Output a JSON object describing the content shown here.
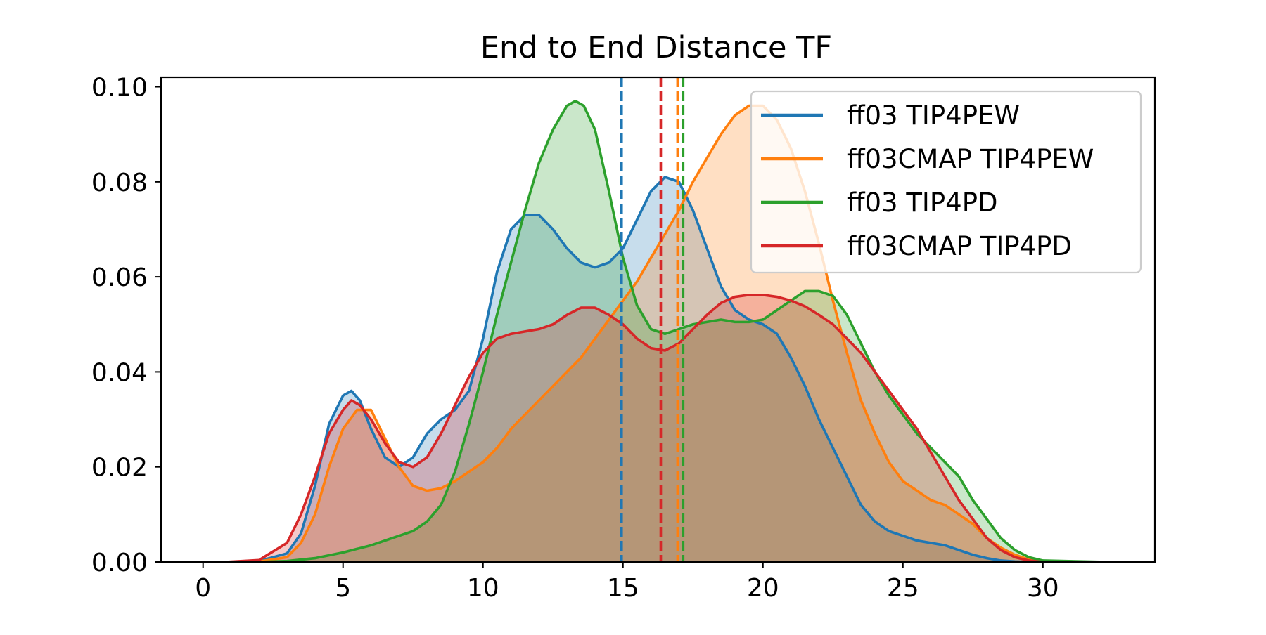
{
  "chart_data": {
    "type": "area",
    "title": "End to End Distance TF",
    "xlabel": "",
    "ylabel": "",
    "xlim": [
      -1.5,
      34
    ],
    "ylim": [
      0,
      0.102
    ],
    "xticks": [
      0,
      5,
      10,
      15,
      20,
      25,
      30
    ],
    "yticks": [
      0.0,
      0.02,
      0.04,
      0.06,
      0.08,
      0.1
    ],
    "xtick_labels": [
      "0",
      "5",
      "10",
      "15",
      "20",
      "25",
      "30"
    ],
    "ytick_labels": [
      "0.00",
      "0.02",
      "0.04",
      "0.06",
      "0.08",
      "0.10"
    ],
    "grid": false,
    "legend_position": "top-right",
    "series": [
      {
        "name": "ff03 TIP4PEW",
        "color": "#1f77b4",
        "mean": 14.95,
        "x": [
          0.8,
          2,
          3,
          3.5,
          4,
          4.5,
          5,
          5.3,
          5.6,
          6,
          6.5,
          7,
          7.5,
          8,
          8.5,
          9,
          9.5,
          10,
          10.5,
          11,
          11.5,
          12,
          12.5,
          13,
          13.5,
          14,
          14.5,
          15,
          15.5,
          16,
          16.5,
          17,
          17.5,
          18,
          18.5,
          19,
          19.5,
          20,
          20.5,
          21,
          21.5,
          22,
          22.5,
          23,
          23.5,
          24,
          24.5,
          25,
          25.5,
          26,
          26.5,
          27,
          27.5,
          28,
          28.5,
          29,
          29.5,
          30,
          32.3
        ],
        "values": [
          0,
          0.0002,
          0.0018,
          0.006,
          0.016,
          0.029,
          0.035,
          0.036,
          0.034,
          0.028,
          0.022,
          0.02,
          0.022,
          0.027,
          0.03,
          0.032,
          0.036,
          0.047,
          0.061,
          0.07,
          0.073,
          0.073,
          0.07,
          0.066,
          0.063,
          0.062,
          0.063,
          0.066,
          0.072,
          0.078,
          0.081,
          0.08,
          0.074,
          0.066,
          0.058,
          0.053,
          0.051,
          0.05,
          0.048,
          0.043,
          0.037,
          0.03,
          0.024,
          0.018,
          0.012,
          0.0085,
          0.0065,
          0.0055,
          0.0045,
          0.004,
          0.0035,
          0.0025,
          0.0015,
          0.0008,
          0.0003,
          0.0001,
          0,
          0,
          0
        ]
      },
      {
        "name": "ff03CMAP TIP4PEW",
        "color": "#ff7f0e",
        "mean": 16.95,
        "x": [
          0.8,
          2,
          3,
          3.5,
          4,
          4.5,
          5,
          5.5,
          6,
          6.5,
          7,
          7.5,
          8,
          8.5,
          9,
          9.5,
          10,
          10.5,
          11,
          11.5,
          12,
          12.5,
          13,
          13.5,
          14,
          14.5,
          15,
          15.5,
          16,
          16.5,
          17,
          17.5,
          18,
          18.5,
          19,
          19.5,
          20,
          20.5,
          21,
          21.5,
          22,
          22.5,
          23,
          23.5,
          24,
          24.5,
          25,
          25.5,
          26,
          26.5,
          27,
          27.5,
          28,
          28.5,
          29,
          29.5,
          30,
          32.3
        ],
        "values": [
          0,
          0.0001,
          0.001,
          0.004,
          0.01,
          0.02,
          0.028,
          0.032,
          0.032,
          0.026,
          0.02,
          0.016,
          0.015,
          0.0155,
          0.017,
          0.019,
          0.021,
          0.024,
          0.028,
          0.031,
          0.034,
          0.037,
          0.04,
          0.043,
          0.047,
          0.051,
          0.055,
          0.059,
          0.064,
          0.069,
          0.074,
          0.08,
          0.085,
          0.09,
          0.094,
          0.096,
          0.096,
          0.093,
          0.087,
          0.078,
          0.067,
          0.055,
          0.044,
          0.034,
          0.027,
          0.021,
          0.017,
          0.015,
          0.013,
          0.012,
          0.01,
          0.008,
          0.005,
          0.003,
          0.0015,
          0.0005,
          0,
          0
        ]
      },
      {
        "name": "ff03 TIP4PD",
        "color": "#2ca02c",
        "mean": 17.15,
        "x": [
          0.8,
          2,
          3,
          4,
          5,
          6,
          7,
          7.5,
          8,
          8.5,
          9,
          9.5,
          10,
          10.5,
          11,
          11.5,
          12,
          12.5,
          13,
          13.3,
          13.6,
          14,
          14.5,
          15,
          15.5,
          16,
          16.5,
          17,
          17.5,
          18,
          18.5,
          19,
          19.5,
          20,
          20.5,
          21,
          21.5,
          22,
          22.5,
          23,
          23.5,
          24,
          24.5,
          25,
          25.5,
          26,
          26.5,
          27,
          27.5,
          28,
          28.5,
          29,
          29.5,
          30,
          32.3
        ],
        "values": [
          0,
          0,
          0.0002,
          0.0008,
          0.002,
          0.0035,
          0.0055,
          0.0065,
          0.0085,
          0.012,
          0.019,
          0.029,
          0.04,
          0.052,
          0.063,
          0.074,
          0.084,
          0.091,
          0.096,
          0.097,
          0.096,
          0.091,
          0.078,
          0.064,
          0.054,
          0.049,
          0.048,
          0.049,
          0.05,
          0.0505,
          0.051,
          0.0505,
          0.0505,
          0.051,
          0.053,
          0.055,
          0.057,
          0.057,
          0.056,
          0.052,
          0.046,
          0.04,
          0.035,
          0.031,
          0.027,
          0.024,
          0.021,
          0.018,
          0.013,
          0.009,
          0.005,
          0.0025,
          0.001,
          0.0003,
          0
        ]
      },
      {
        "name": "ff03CMAP TIP4PD",
        "color": "#d62728",
        "mean": 16.35,
        "x": [
          0.8,
          2,
          3,
          3.5,
          4,
          4.5,
          5,
          5.3,
          5.6,
          6,
          6.5,
          7,
          7.5,
          8,
          8.5,
          9,
          9.5,
          10,
          10.5,
          11,
          11.5,
          12,
          12.5,
          13,
          13.5,
          14,
          14.5,
          15,
          15.5,
          16,
          16.5,
          17,
          17.5,
          18,
          18.5,
          19,
          19.5,
          20,
          20.5,
          21,
          21.5,
          22,
          22.5,
          23,
          23.5,
          24,
          24.5,
          25,
          25.5,
          26,
          26.5,
          27,
          27.5,
          28,
          28.5,
          29,
          29.5,
          30,
          32.3
        ],
        "values": [
          0,
          0.0004,
          0.004,
          0.01,
          0.018,
          0.027,
          0.032,
          0.034,
          0.033,
          0.03,
          0.025,
          0.021,
          0.02,
          0.022,
          0.027,
          0.033,
          0.039,
          0.044,
          0.047,
          0.048,
          0.0485,
          0.049,
          0.05,
          0.052,
          0.0535,
          0.0535,
          0.052,
          0.05,
          0.047,
          0.045,
          0.0445,
          0.046,
          0.049,
          0.052,
          0.0545,
          0.0558,
          0.0562,
          0.0562,
          0.0558,
          0.055,
          0.0538,
          0.052,
          0.05,
          0.047,
          0.044,
          0.04,
          0.036,
          0.032,
          0.028,
          0.023,
          0.018,
          0.013,
          0.009,
          0.005,
          0.0025,
          0.001,
          0.0003,
          0,
          0
        ]
      }
    ]
  }
}
